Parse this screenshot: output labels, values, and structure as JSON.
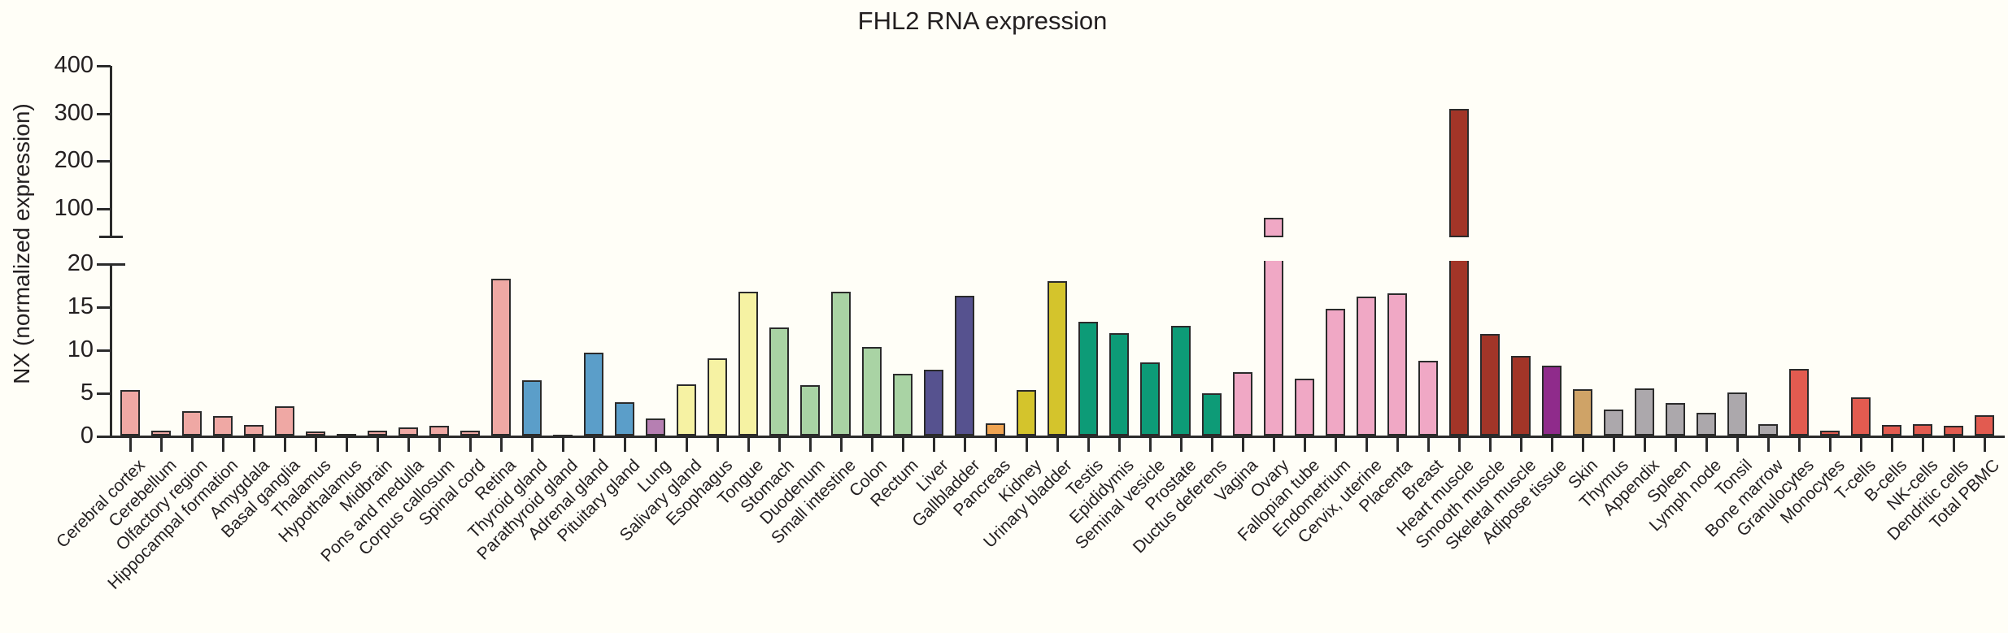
{
  "title": "FHL2 RNA expression",
  "chart_data": {
    "type": "bar",
    "title": "FHL2 RNA expression",
    "xlabel": "",
    "ylabel": "NX (normalized expression)",
    "legend": "none",
    "grid": false,
    "axis_break": true,
    "upper_axis": {
      "range_shown": [
        40,
        400
      ],
      "ticks": [
        100,
        200,
        300,
        400
      ]
    },
    "lower_axis": {
      "range_shown": [
        0,
        20
      ],
      "ticks": [
        0,
        5,
        10,
        15,
        20
      ]
    },
    "bar_outline_color": "#2b2b2b",
    "group_colors": {
      "brain": "#efa8a4",
      "endocrine": "#5b9ec9",
      "lung": "#b67fb2",
      "gi_upper": "#f6f2a3",
      "gi_tract": "#a9d3a4",
      "liver_gallbladder": "#56528f",
      "pancreas": "#f0a452",
      "kidney_bladder": "#d4c42c",
      "male_tissues": "#0d9b77",
      "female_tissues": "#f0a8c5",
      "muscle": "#a23528",
      "adipose": "#8f2b8b",
      "skin": "#cfa367",
      "lymphoid": "#aca8ac",
      "blood": "#e25b50"
    },
    "bars": [
      {
        "label": "Cerebral cortex",
        "value": 5.4,
        "group": "brain"
      },
      {
        "label": "Cerebellum",
        "value": 0.7,
        "group": "brain"
      },
      {
        "label": "Olfactory region",
        "value": 2.9,
        "group": "brain"
      },
      {
        "label": "Hippocampal formation",
        "value": 2.4,
        "group": "brain"
      },
      {
        "label": "Amygdala",
        "value": 1.3,
        "group": "brain"
      },
      {
        "label": "Basal ganglia",
        "value": 3.5,
        "group": "brain"
      },
      {
        "label": "Thalamus",
        "value": 0.6,
        "group": "brain"
      },
      {
        "label": "Hypothalamus",
        "value": 0.3,
        "group": "brain"
      },
      {
        "label": "Midbrain",
        "value": 0.7,
        "group": "brain"
      },
      {
        "label": "Pons and medulla",
        "value": 1.0,
        "group": "brain"
      },
      {
        "label": "Corpus callosum",
        "value": 1.2,
        "group": "brain"
      },
      {
        "label": "Spinal cord",
        "value": 0.7,
        "group": "brain"
      },
      {
        "label": "Retina",
        "value": 18.3,
        "group": "brain"
      },
      {
        "label": "Thyroid gland",
        "value": 6.5,
        "group": "endocrine"
      },
      {
        "label": "Parathyroid gland",
        "value": 0.1,
        "group": "endocrine"
      },
      {
        "label": "Adrenal gland",
        "value": 9.7,
        "group": "endocrine"
      },
      {
        "label": "Pituitary gland",
        "value": 4.0,
        "group": "endocrine"
      },
      {
        "label": "Lung",
        "value": 2.1,
        "group": "lung"
      },
      {
        "label": "Salivary gland",
        "value": 6.0,
        "group": "gi_upper"
      },
      {
        "label": "Esophagus",
        "value": 9.1,
        "group": "gi_upper"
      },
      {
        "label": "Tongue",
        "value": 16.8,
        "group": "gi_upper"
      },
      {
        "label": "Stomach",
        "value": 12.6,
        "group": "gi_tract"
      },
      {
        "label": "Duodenum",
        "value": 5.9,
        "group": "gi_tract"
      },
      {
        "label": "Small intestine",
        "value": 16.8,
        "group": "gi_tract"
      },
      {
        "label": "Colon",
        "value": 10.4,
        "group": "gi_tract"
      },
      {
        "label": "Rectum",
        "value": 7.3,
        "group": "gi_tract"
      },
      {
        "label": "Liver",
        "value": 7.7,
        "group": "liver_gallbladder"
      },
      {
        "label": "Gallbladder",
        "value": 16.3,
        "group": "liver_gallbladder"
      },
      {
        "label": "Pancreas",
        "value": 1.5,
        "group": "pancreas"
      },
      {
        "label": "Kidney",
        "value": 5.4,
        "group": "kidney_bladder"
      },
      {
        "label": "Urinary bladder",
        "value": 18.0,
        "group": "kidney_bladder"
      },
      {
        "label": "Testis",
        "value": 13.3,
        "group": "male_tissues"
      },
      {
        "label": "Epididymis",
        "value": 12.0,
        "group": "male_tissues"
      },
      {
        "label": "Seminal vesicle",
        "value": 8.6,
        "group": "male_tissues"
      },
      {
        "label": "Prostate",
        "value": 12.8,
        "group": "male_tissues"
      },
      {
        "label": "Ductus deferens",
        "value": 5.0,
        "group": "male_tissues"
      },
      {
        "label": "Vagina",
        "value": 7.5,
        "group": "female_tissues"
      },
      {
        "label": "Ovary",
        "value": 82,
        "group": "female_tissues"
      },
      {
        "label": "Fallopian tube",
        "value": 6.7,
        "group": "female_tissues"
      },
      {
        "label": "Endometrium",
        "value": 14.8,
        "group": "female_tissues"
      },
      {
        "label": "Cervix, uterine",
        "value": 16.2,
        "group": "female_tissues"
      },
      {
        "label": "Placenta",
        "value": 16.6,
        "group": "female_tissues"
      },
      {
        "label": "Breast",
        "value": 8.8,
        "group": "female_tissues"
      },
      {
        "label": "Heart muscle",
        "value": 310,
        "group": "muscle"
      },
      {
        "label": "Smooth muscle",
        "value": 11.9,
        "group": "muscle"
      },
      {
        "label": "Skeletal muscle",
        "value": 9.3,
        "group": "muscle"
      },
      {
        "label": "Adipose tissue",
        "value": 8.2,
        "group": "adipose"
      },
      {
        "label": "Skin",
        "value": 5.5,
        "group": "skin"
      },
      {
        "label": "Thymus",
        "value": 3.1,
        "group": "lymphoid"
      },
      {
        "label": "Appendix",
        "value": 5.6,
        "group": "lymphoid"
      },
      {
        "label": "Spleen",
        "value": 3.9,
        "group": "lymphoid"
      },
      {
        "label": "Lymph node",
        "value": 2.7,
        "group": "lymphoid"
      },
      {
        "label": "Tonsil",
        "value": 5.1,
        "group": "lymphoid"
      },
      {
        "label": "Bone marrow",
        "value": 1.4,
        "group": "lymphoid"
      },
      {
        "label": "Granulocytes",
        "value": 7.8,
        "group": "blood"
      },
      {
        "label": "Monocytes",
        "value": 0.7,
        "group": "blood"
      },
      {
        "label": "T-cells",
        "value": 4.5,
        "group": "blood"
      },
      {
        "label": "B-cells",
        "value": 1.3,
        "group": "blood"
      },
      {
        "label": "NK-cells",
        "value": 1.4,
        "group": "blood"
      },
      {
        "label": "Dendritic cells",
        "value": 1.2,
        "group": "blood"
      },
      {
        "label": "Total PBMC",
        "value": 2.5,
        "group": "blood"
      }
    ]
  }
}
